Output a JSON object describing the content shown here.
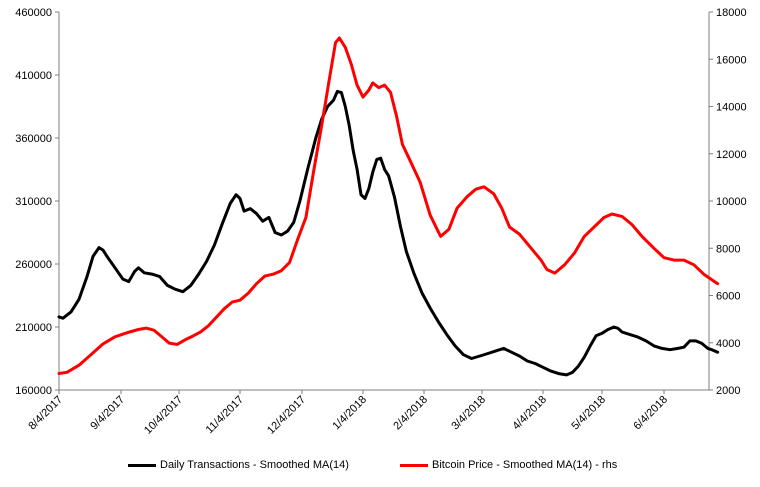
{
  "chart_data": {
    "type": "line",
    "title": "",
    "xlabel": "",
    "ylabel": "",
    "x_tick_labels": [
      "8/4/2017",
      "9/4/2017",
      "10/4/2017",
      "11/4/2017",
      "12/4/2017",
      "1/4/2018",
      "2/4/2018",
      "3/4/2018",
      "4/4/2018",
      "5/4/2018",
      "6/4/2018"
    ],
    "y_left": {
      "ylim": [
        160000,
        460000
      ],
      "ticks": [
        "160000",
        "210000",
        "260000",
        "310000",
        "360000",
        "410000",
        "460000"
      ]
    },
    "y_right": {
      "ylim": [
        2000,
        18000
      ],
      "ticks": [
        "2000",
        "4000",
        "6000",
        "8000",
        "10000",
        "12000",
        "14000",
        "16000",
        "18000"
      ]
    },
    "x_range": [
      "2017-08-04",
      "2018-07-01"
    ],
    "grid": false,
    "legend_position": "bottom",
    "series": [
      {
        "name": "Daily Transactions - Smoothed MA(14)",
        "color": "#000000",
        "axis": "left",
        "points": [
          [
            "2017-08-04",
            218000
          ],
          [
            "2017-08-06",
            217000
          ],
          [
            "2017-08-10",
            222000
          ],
          [
            "2017-08-14",
            232000
          ],
          [
            "2017-08-18",
            250000
          ],
          [
            "2017-08-21",
            266000
          ],
          [
            "2017-08-24",
            273000
          ],
          [
            "2017-08-26",
            271000
          ],
          [
            "2017-08-28",
            266000
          ],
          [
            "2017-09-01",
            257000
          ],
          [
            "2017-09-05",
            248000
          ],
          [
            "2017-09-08",
            246000
          ],
          [
            "2017-09-11",
            254000
          ],
          [
            "2017-09-13",
            257000
          ],
          [
            "2017-09-16",
            253000
          ],
          [
            "2017-09-20",
            252000
          ],
          [
            "2017-09-24",
            250000
          ],
          [
            "2017-09-28",
            243000
          ],
          [
            "2017-10-02",
            240000
          ],
          [
            "2017-10-06",
            238000
          ],
          [
            "2017-10-10",
            243000
          ],
          [
            "2017-10-14",
            252000
          ],
          [
            "2017-10-18",
            262000
          ],
          [
            "2017-10-22",
            275000
          ],
          [
            "2017-10-26",
            292000
          ],
          [
            "2017-10-30",
            308000
          ],
          [
            "2017-11-02",
            315000
          ],
          [
            "2017-11-04",
            312000
          ],
          [
            "2017-11-06",
            302000
          ],
          [
            "2017-11-09",
            304000
          ],
          [
            "2017-11-12",
            300000
          ],
          [
            "2017-11-15",
            294000
          ],
          [
            "2017-11-18",
            297000
          ],
          [
            "2017-11-21",
            285000
          ],
          [
            "2017-11-24",
            283000
          ],
          [
            "2017-11-27",
            286000
          ],
          [
            "2017-11-30",
            293000
          ],
          [
            "2017-12-03",
            310000
          ],
          [
            "2017-12-07",
            336000
          ],
          [
            "2017-12-11",
            360000
          ],
          [
            "2017-12-14",
            375000
          ],
          [
            "2017-12-17",
            385000
          ],
          [
            "2017-12-20",
            390000
          ],
          [
            "2017-12-22",
            397000
          ],
          [
            "2017-12-24",
            396000
          ],
          [
            "2017-12-26",
            385000
          ],
          [
            "2017-12-28",
            370000
          ],
          [
            "2017-12-30",
            350000
          ],
          [
            "2018-01-01",
            335000
          ],
          [
            "2018-01-03",
            315000
          ],
          [
            "2018-01-05",
            312000
          ],
          [
            "2018-01-07",
            320000
          ],
          [
            "2018-01-09",
            333000
          ],
          [
            "2018-01-11",
            343000
          ],
          [
            "2018-01-13",
            344000
          ],
          [
            "2018-01-15",
            335000
          ],
          [
            "2018-01-17",
            330000
          ],
          [
            "2018-01-20",
            313000
          ],
          [
            "2018-01-23",
            290000
          ],
          [
            "2018-01-26",
            270000
          ],
          [
            "2018-01-30",
            252000
          ],
          [
            "2018-02-03",
            237000
          ],
          [
            "2018-02-07",
            225000
          ],
          [
            "2018-02-11",
            214000
          ],
          [
            "2018-02-15",
            204000
          ],
          [
            "2018-02-19",
            195000
          ],
          [
            "2018-02-23",
            188000
          ],
          [
            "2018-02-27",
            185000
          ],
          [
            "2018-03-03",
            187000
          ],
          [
            "2018-03-07",
            189000
          ],
          [
            "2018-03-11",
            191000
          ],
          [
            "2018-03-15",
            193000
          ],
          [
            "2018-03-19",
            190000
          ],
          [
            "2018-03-23",
            187000
          ],
          [
            "2018-03-27",
            183000
          ],
          [
            "2018-03-31",
            181000
          ],
          [
            "2018-04-04",
            178000
          ],
          [
            "2018-04-08",
            175000
          ],
          [
            "2018-04-12",
            173000
          ],
          [
            "2018-04-16",
            172000
          ],
          [
            "2018-04-19",
            174000
          ],
          [
            "2018-04-22",
            179000
          ],
          [
            "2018-04-25",
            186000
          ],
          [
            "2018-04-28",
            195000
          ],
          [
            "2018-05-01",
            203000
          ],
          [
            "2018-05-04",
            205000
          ],
          [
            "2018-05-07",
            208000
          ],
          [
            "2018-05-10",
            210000
          ],
          [
            "2018-05-12",
            209000
          ],
          [
            "2018-05-14",
            206000
          ],
          [
            "2018-05-18",
            204000
          ],
          [
            "2018-05-22",
            202000
          ],
          [
            "2018-05-26",
            199000
          ],
          [
            "2018-05-30",
            195000
          ],
          [
            "2018-06-03",
            193000
          ],
          [
            "2018-06-07",
            192000
          ],
          [
            "2018-06-11",
            193000
          ],
          [
            "2018-06-14",
            194000
          ],
          [
            "2018-06-17",
            199000
          ],
          [
            "2018-06-20",
            199000
          ],
          [
            "2018-06-23",
            197000
          ],
          [
            "2018-06-26",
            193000
          ],
          [
            "2018-06-28",
            192000
          ],
          [
            "2018-07-01",
            190000
          ]
        ]
      },
      {
        "name": "Bitcoin Price - Smoothed MA(14) - rhs",
        "color": "#ff0000",
        "axis": "right",
        "points": [
          [
            "2017-08-04",
            2700
          ],
          [
            "2017-08-08",
            2750
          ],
          [
            "2017-08-14",
            3050
          ],
          [
            "2017-08-20",
            3500
          ],
          [
            "2017-08-26",
            3950
          ],
          [
            "2017-09-01",
            4250
          ],
          [
            "2017-09-07",
            4420
          ],
          [
            "2017-09-13",
            4560
          ],
          [
            "2017-09-17",
            4620
          ],
          [
            "2017-09-21",
            4530
          ],
          [
            "2017-09-25",
            4260
          ],
          [
            "2017-09-29",
            3980
          ],
          [
            "2017-10-03",
            3930
          ],
          [
            "2017-10-07",
            4120
          ],
          [
            "2017-10-11",
            4280
          ],
          [
            "2017-10-15",
            4460
          ],
          [
            "2017-10-19",
            4720
          ],
          [
            "2017-10-23",
            5080
          ],
          [
            "2017-10-27",
            5440
          ],
          [
            "2017-10-31",
            5720
          ],
          [
            "2017-11-04",
            5800
          ],
          [
            "2017-11-08",
            6100
          ],
          [
            "2017-11-12",
            6500
          ],
          [
            "2017-11-16",
            6820
          ],
          [
            "2017-11-20",
            6900
          ],
          [
            "2017-11-24",
            7050
          ],
          [
            "2017-11-28",
            7400
          ],
          [
            "2017-12-02",
            8400
          ],
          [
            "2017-12-06",
            9300
          ],
          [
            "2017-12-10",
            11300
          ],
          [
            "2017-12-14",
            13200
          ],
          [
            "2017-12-18",
            15200
          ],
          [
            "2017-12-21",
            16700
          ],
          [
            "2017-12-23",
            16900
          ],
          [
            "2017-12-26",
            16500
          ],
          [
            "2017-12-29",
            15800
          ],
          [
            "2018-01-01",
            14900
          ],
          [
            "2018-01-04",
            14400
          ],
          [
            "2018-01-07",
            14700
          ],
          [
            "2018-01-09",
            15000
          ],
          [
            "2018-01-12",
            14800
          ],
          [
            "2018-01-15",
            14900
          ],
          [
            "2018-01-18",
            14600
          ],
          [
            "2018-01-21",
            13600
          ],
          [
            "2018-01-24",
            12400
          ],
          [
            "2018-01-28",
            11700
          ],
          [
            "2018-02-02",
            10800
          ],
          [
            "2018-02-07",
            9400
          ],
          [
            "2018-02-12",
            8500
          ],
          [
            "2018-02-16",
            8800
          ],
          [
            "2018-02-20",
            9700
          ],
          [
            "2018-02-25",
            10200
          ],
          [
            "2018-03-01",
            10500
          ],
          [
            "2018-03-05",
            10600
          ],
          [
            "2018-03-10",
            10300
          ],
          [
            "2018-03-14",
            9700
          ],
          [
            "2018-03-18",
            8900
          ],
          [
            "2018-03-23",
            8600
          ],
          [
            "2018-03-29",
            8000
          ],
          [
            "2018-04-03",
            7500
          ],
          [
            "2018-04-06",
            7100
          ],
          [
            "2018-04-10",
            6950
          ],
          [
            "2018-04-15",
            7300
          ],
          [
            "2018-04-20",
            7800
          ],
          [
            "2018-04-25",
            8500
          ],
          [
            "2018-04-30",
            8900
          ],
          [
            "2018-05-05",
            9300
          ],
          [
            "2018-05-09",
            9450
          ],
          [
            "2018-05-14",
            9350
          ],
          [
            "2018-05-19",
            9000
          ],
          [
            "2018-05-24",
            8500
          ],
          [
            "2018-05-30",
            8000
          ],
          [
            "2018-06-04",
            7600
          ],
          [
            "2018-06-09",
            7500
          ],
          [
            "2018-06-14",
            7500
          ],
          [
            "2018-06-19",
            7300
          ],
          [
            "2018-06-24",
            6900
          ],
          [
            "2018-07-01",
            6500
          ]
        ]
      }
    ]
  }
}
